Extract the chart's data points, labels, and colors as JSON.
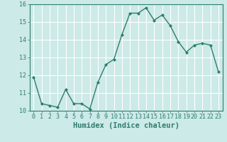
{
  "x": [
    0,
    1,
    2,
    3,
    4,
    5,
    6,
    7,
    8,
    9,
    10,
    11,
    12,
    13,
    14,
    15,
    16,
    17,
    18,
    19,
    20,
    21,
    22,
    23
  ],
  "y": [
    11.9,
    10.4,
    10.3,
    10.2,
    11.2,
    10.4,
    10.4,
    10.1,
    11.6,
    12.6,
    12.9,
    14.3,
    15.5,
    15.5,
    15.8,
    15.1,
    15.4,
    14.8,
    13.9,
    13.3,
    13.7,
    13.8,
    13.7,
    12.2
  ],
  "line_color": "#2d7d6e",
  "marker": "D",
  "marker_size": 2.0,
  "bg_color": "#cceae7",
  "grid_color": "#ffffff",
  "xlabel": "Humidex (Indice chaleur)",
  "xlim": [
    -0.5,
    23.5
  ],
  "ylim": [
    10,
    16
  ],
  "yticks": [
    10,
    11,
    12,
    13,
    14,
    15,
    16
  ],
  "xticks": [
    0,
    1,
    2,
    3,
    4,
    5,
    6,
    7,
    8,
    9,
    10,
    11,
    12,
    13,
    14,
    15,
    16,
    17,
    18,
    19,
    20,
    21,
    22,
    23
  ],
  "xlabel_fontsize": 7.5,
  "tick_fontsize": 6.0,
  "linewidth": 1.0,
  "spine_color": "#2d7d6e"
}
